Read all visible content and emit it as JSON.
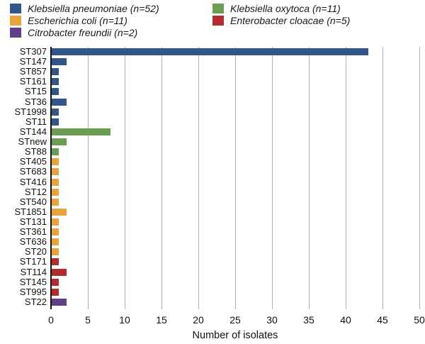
{
  "legend": {
    "items": [
      {
        "label": "Klebsiella pneumoniae (n=52)",
        "species": "Klebsiella pneumoniae",
        "color": "#33568a"
      },
      {
        "label": "Escherichia coli (n=11)",
        "species": "Escherichia coli",
        "color": "#e6a33e"
      },
      {
        "label": "Citrobacter freundii (n=2)",
        "species": "Citrobacter freundii",
        "color": "#5f4086"
      },
      {
        "label": "Klebsiella oxytoca (n=11)",
        "species": "Klebsiella oxytoca",
        "color": "#6b9e53"
      },
      {
        "label": "Enterobacter cloacae (n=5)",
        "species": "Enterobacter cloacae",
        "color": "#b32d30"
      }
    ]
  },
  "chart_data": {
    "type": "bar",
    "orientation": "horizontal",
    "title": "",
    "xlabel": "Number of isolates",
    "ylabel": "",
    "xlim": [
      0,
      50
    ],
    "xticks": [
      0,
      5,
      10,
      15,
      20,
      25,
      30,
      35,
      40,
      45,
      50
    ],
    "grid": true,
    "legend_position": "top",
    "colors": {
      "Klebsiella pneumoniae": "#33568a",
      "Escherichia coli": "#e6a33e",
      "Citrobacter freundii": "#5f4086",
      "Klebsiella oxytoca": "#6b9e53",
      "Enterobacter cloacae": "#b32d30"
    },
    "bars": [
      {
        "category": "ST307",
        "value": 43,
        "species": "Klebsiella pneumoniae"
      },
      {
        "category": "ST147",
        "value": 2,
        "species": "Klebsiella pneumoniae"
      },
      {
        "category": "ST857",
        "value": 1,
        "species": "Klebsiella pneumoniae"
      },
      {
        "category": "ST161",
        "value": 1,
        "species": "Klebsiella pneumoniae"
      },
      {
        "category": "ST15",
        "value": 1,
        "species": "Klebsiella pneumoniae"
      },
      {
        "category": "ST36",
        "value": 2,
        "species": "Klebsiella pneumoniae"
      },
      {
        "category": "ST1998",
        "value": 1,
        "species": "Klebsiella pneumoniae"
      },
      {
        "category": "ST11",
        "value": 1,
        "species": "Klebsiella pneumoniae"
      },
      {
        "category": "ST144",
        "value": 8,
        "species": "Klebsiella oxytoca"
      },
      {
        "category": "STnew",
        "value": 2,
        "species": "Klebsiella oxytoca"
      },
      {
        "category": "ST88",
        "value": 1,
        "species": "Klebsiella oxytoca"
      },
      {
        "category": "ST405",
        "value": 1,
        "species": "Escherichia coli"
      },
      {
        "category": "ST683",
        "value": 1,
        "species": "Escherichia coli"
      },
      {
        "category": "ST416",
        "value": 1,
        "species": "Escherichia coli"
      },
      {
        "category": "ST12",
        "value": 1,
        "species": "Escherichia coli"
      },
      {
        "category": "ST540",
        "value": 1,
        "species": "Escherichia coli"
      },
      {
        "category": "ST1851",
        "value": 2,
        "species": "Escherichia coli"
      },
      {
        "category": "ST131",
        "value": 1,
        "species": "Escherichia coli"
      },
      {
        "category": "ST361",
        "value": 1,
        "species": "Escherichia coli"
      },
      {
        "category": "ST636",
        "value": 1,
        "species": "Escherichia coli"
      },
      {
        "category": "ST20",
        "value": 1,
        "species": "Escherichia coli"
      },
      {
        "category": "ST171",
        "value": 1,
        "species": "Enterobacter cloacae"
      },
      {
        "category": "ST114",
        "value": 2,
        "species": "Enterobacter cloacae"
      },
      {
        "category": "ST145",
        "value": 1,
        "species": "Enterobacter cloacae"
      },
      {
        "category": "ST995",
        "value": 1,
        "species": "Enterobacter cloacae"
      },
      {
        "category": "ST22",
        "value": 2,
        "species": "Citrobacter freundii"
      }
    ]
  }
}
